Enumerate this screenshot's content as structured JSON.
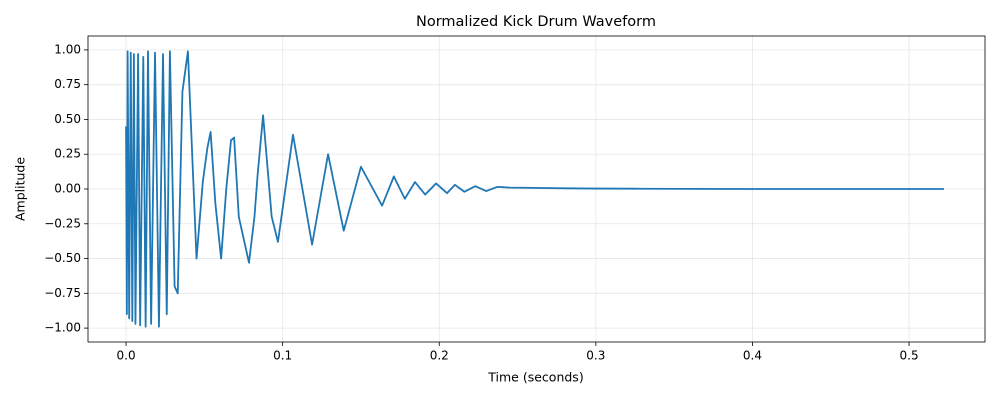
{
  "chart_data": {
    "type": "line",
    "title": "Normalized Kick Drum Waveform",
    "x_label": "Time (seconds)",
    "y_label": "Amplitude",
    "color": "#1f77b4",
    "grid": true,
    "x": [
      0.0,
      0.0005,
      0.001,
      0.002,
      0.003,
      0.004,
      0.005,
      0.006,
      0.0077,
      0.009,
      0.011,
      0.0125,
      0.014,
      0.016,
      0.0185,
      0.021,
      0.0236,
      0.026,
      0.028,
      0.031,
      0.033,
      0.036,
      0.0395,
      0.045,
      0.049,
      0.052,
      0.054,
      0.057,
      0.0607,
      0.064,
      0.067,
      0.069,
      0.072,
      0.0785,
      0.082,
      0.084,
      0.0875,
      0.093,
      0.097,
      0.1066,
      0.1188,
      0.129,
      0.139,
      0.15,
      0.1635,
      0.171,
      0.178,
      0.1845,
      0.191,
      0.198,
      0.205,
      0.21,
      0.216,
      0.223,
      0.23,
      0.237,
      0.245,
      0.26,
      0.28,
      0.3,
      0.33,
      0.36,
      0.4,
      0.45,
      0.5,
      0.5223
    ],
    "values": [
      0.45,
      -0.9,
      0.99,
      -0.93,
      0.98,
      -0.95,
      0.97,
      -0.97,
      0.97,
      -0.98,
      0.95,
      -0.99,
      0.99,
      -0.97,
      0.98,
      -0.99,
      0.97,
      -0.9,
      0.99,
      -0.7,
      -0.75,
      0.7,
      0.99,
      -0.5,
      0.05,
      0.3,
      0.41,
      -0.1,
      -0.5,
      0.0,
      0.35,
      0.37,
      -0.2,
      -0.53,
      -0.2,
      0.1,
      0.53,
      -0.2,
      -0.38,
      0.39,
      -0.4,
      0.25,
      -0.3,
      0.16,
      -0.12,
      0.09,
      -0.07,
      0.05,
      -0.04,
      0.04,
      -0.03,
      0.03,
      -0.02,
      0.02,
      -0.015,
      0.015,
      0.01,
      0.008,
      0.005,
      0.003,
      0.002,
      0.001,
      0.0,
      0.0,
      0.0,
      0.0
    ],
    "xlim": [
      -0.0243,
      0.5485
    ],
    "ylim": [
      -1.1,
      1.1
    ],
    "xticks": [
      {
        "value": 0,
        "label": "0.0"
      },
      {
        "value": 0.1,
        "label": "0.1"
      },
      {
        "value": 0.2,
        "label": "0.2"
      },
      {
        "value": 0.3,
        "label": "0.3"
      },
      {
        "value": 0.4,
        "label": "0.4"
      },
      {
        "value": 0.5,
        "label": "0.5"
      }
    ],
    "yticks": [
      {
        "value": -1,
        "label": "−1.00"
      },
      {
        "value": -0.75,
        "label": "−0.75"
      },
      {
        "value": -0.5,
        "label": "−0.50"
      },
      {
        "value": -0.25,
        "label": "−0.25"
      },
      {
        "value": 0,
        "label": "0.00"
      },
      {
        "value": 0.25,
        "label": "0.25"
      },
      {
        "value": 0.5,
        "label": "0.50"
      },
      {
        "value": 0.75,
        "label": "0.75"
      },
      {
        "value": 1,
        "label": "1.00"
      }
    ]
  }
}
